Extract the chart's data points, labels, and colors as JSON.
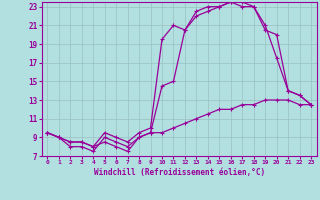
{
  "background_color": "#b2e0e0",
  "line_color": "#990099",
  "grid_color": "#9bbfbf",
  "xlabel": "Windchill (Refroidissement éolien,°C)",
  "xlim": [
    -0.5,
    23.5
  ],
  "ylim": [
    7,
    23.5
  ],
  "xticks": [
    0,
    1,
    2,
    3,
    4,
    5,
    6,
    7,
    8,
    9,
    10,
    11,
    12,
    13,
    14,
    15,
    16,
    17,
    18,
    19,
    20,
    21,
    22,
    23
  ],
  "yticks": [
    7,
    9,
    11,
    13,
    15,
    17,
    19,
    21,
    23
  ],
  "line1_x": [
    0,
    1,
    2,
    3,
    4,
    5,
    6,
    7,
    8,
    9,
    10,
    11,
    12,
    13,
    14,
    15,
    16,
    17,
    18,
    19,
    20,
    21,
    22,
    23
  ],
  "line1_y": [
    9.5,
    9.0,
    8.5,
    8.5,
    8.0,
    8.5,
    8.0,
    7.5,
    9.0,
    9.5,
    9.5,
    10.0,
    10.5,
    11.0,
    11.5,
    12.0,
    12.0,
    12.5,
    12.5,
    13.0,
    13.0,
    13.0,
    12.5,
    12.5
  ],
  "line2_x": [
    0,
    1,
    2,
    3,
    4,
    5,
    6,
    7,
    8,
    9,
    10,
    11,
    12,
    13,
    14,
    15,
    16,
    17,
    18,
    19,
    20,
    21,
    22,
    23
  ],
  "line2_y": [
    9.5,
    9.0,
    8.0,
    8.0,
    7.5,
    9.0,
    8.5,
    8.0,
    9.0,
    9.5,
    14.5,
    15.0,
    20.5,
    22.0,
    22.5,
    23.0,
    23.5,
    23.0,
    23.0,
    20.5,
    20.0,
    14.0,
    13.5,
    12.5
  ],
  "line3_x": [
    0,
    1,
    2,
    3,
    4,
    5,
    6,
    7,
    8,
    9,
    10,
    11,
    12,
    13,
    14,
    15,
    16,
    17,
    18,
    19,
    20,
    21,
    22,
    23
  ],
  "line3_y": [
    9.5,
    9.0,
    8.5,
    8.5,
    8.0,
    9.5,
    9.0,
    8.5,
    9.5,
    10.0,
    19.5,
    21.0,
    20.5,
    22.5,
    23.0,
    23.0,
    23.5,
    23.5,
    23.0,
    21.0,
    17.5,
    14.0,
    13.5,
    12.5
  ]
}
